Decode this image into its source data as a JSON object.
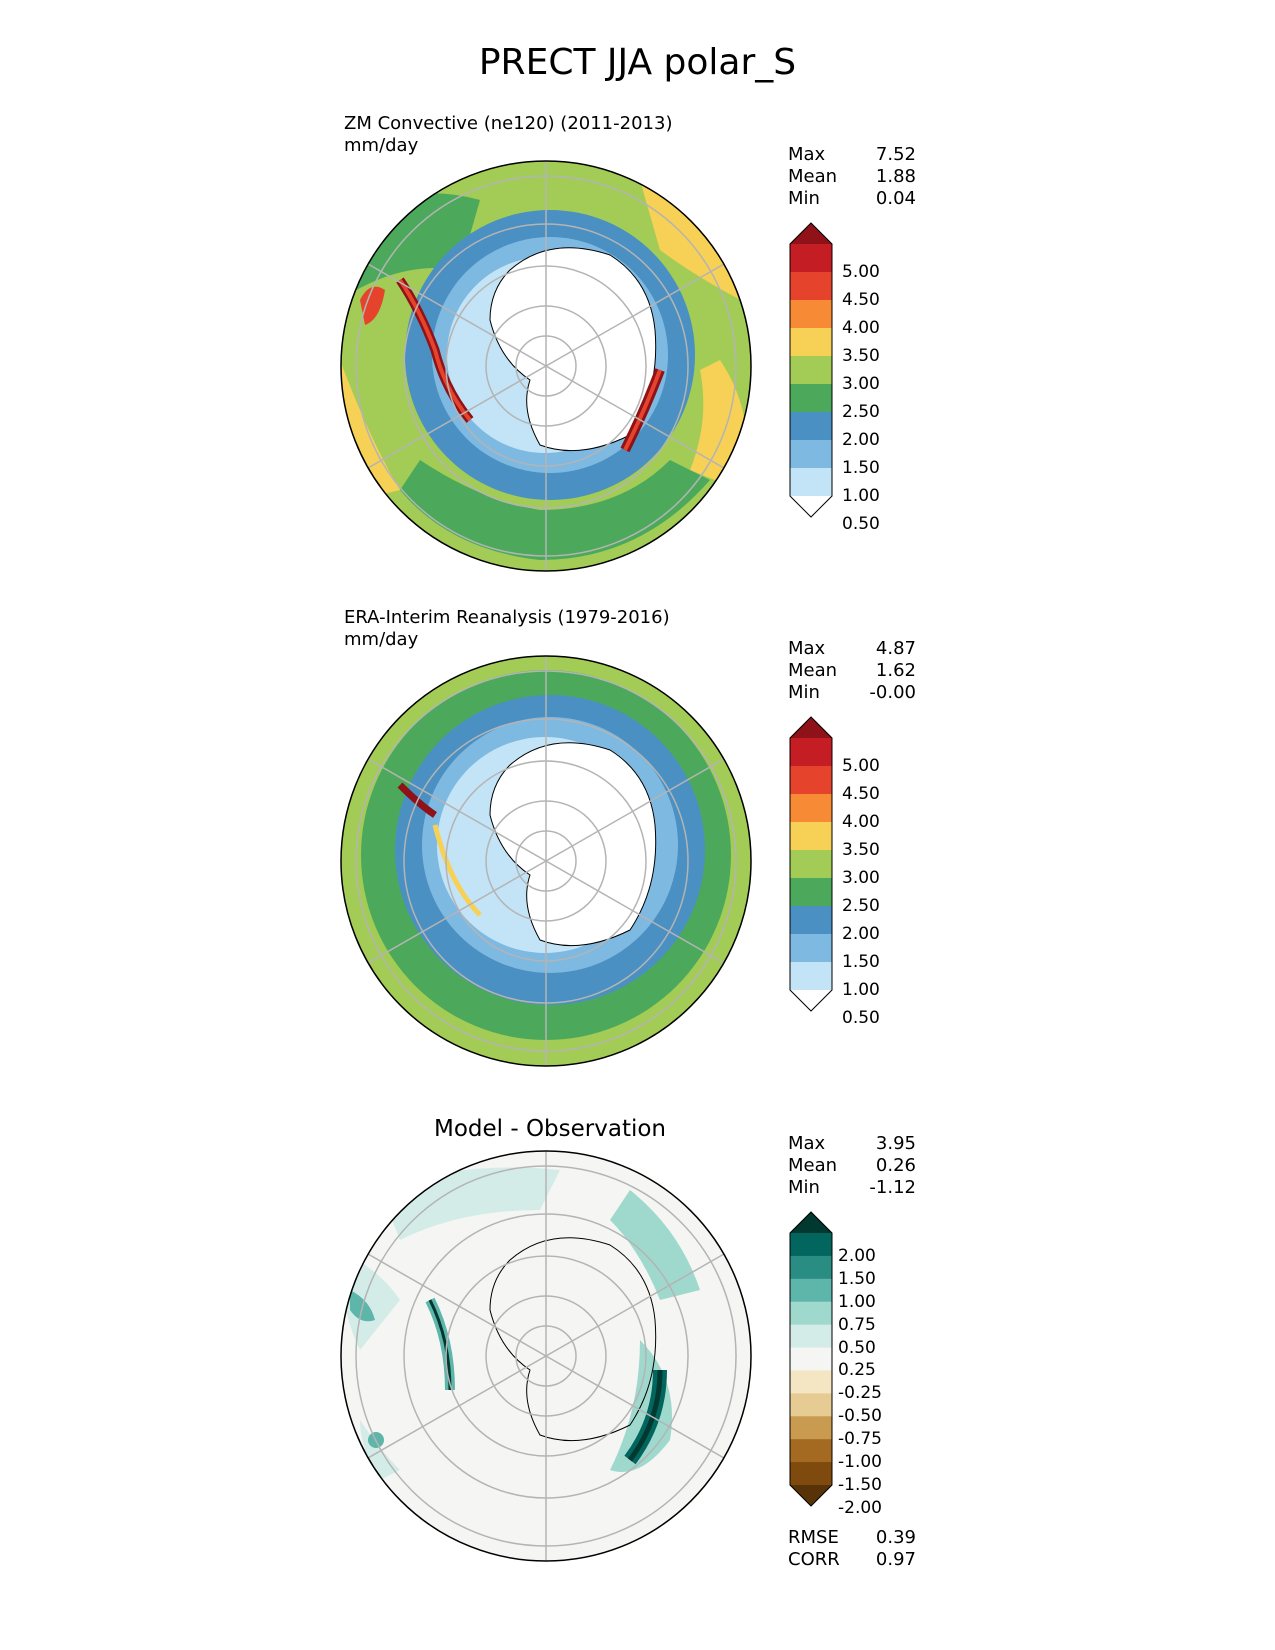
{
  "title": "PRECT JJA polar_S",
  "panels": [
    {
      "id": "test",
      "title_line1": "ZM Convective (ne120) (2011-2013)",
      "title_line2": "mm/day",
      "stats": [
        {
          "label": "Max",
          "value": "7.52"
        },
        {
          "label": "Mean",
          "value": "1.88"
        },
        {
          "label": "Min",
          "value": "0.04"
        }
      ]
    },
    {
      "id": "reference",
      "title_line1": "ERA-Interim Reanalysis (1979-2016)",
      "title_line2": "mm/day",
      "stats": [
        {
          "label": "Max",
          "value": "4.87"
        },
        {
          "label": "Mean",
          "value": "1.62"
        },
        {
          "label": "Min",
          "value": "-0.00"
        }
      ]
    },
    {
      "id": "difference",
      "title_line1": "Model - Observation",
      "stats": [
        {
          "label": "Max",
          "value": "3.95"
        },
        {
          "label": "Mean",
          "value": "0.26"
        },
        {
          "label": "Min",
          "value": "-1.12"
        }
      ],
      "extra_stats": [
        {
          "label": "RMSE",
          "value": "0.39"
        },
        {
          "label": "CORR",
          "value": "0.97"
        }
      ]
    }
  ],
  "colorbars": {
    "precip": {
      "labels": [
        "5.00",
        "4.50",
        "4.00",
        "3.50",
        "3.00",
        "2.50",
        "2.00",
        "1.50",
        "1.00",
        "0.50"
      ],
      "colors": [
        "#8e1218",
        "#c41d24",
        "#e5432b",
        "#f68a35",
        "#f7d056",
        "#a2cc55",
        "#4ca95c",
        "#4a90c2",
        "#7eb9e2",
        "#c3e4f6",
        "#ffffff"
      ]
    },
    "diff": {
      "labels": [
        "2.00",
        "1.50",
        "1.00",
        "0.75",
        "0.50",
        "0.25",
        "-0.25",
        "-0.50",
        "-0.75",
        "-1.00",
        "-1.50",
        "-2.00"
      ],
      "colors": [
        "#01382f",
        "#03665e",
        "#2a8d83",
        "#5eb5aa",
        "#9fd9cd",
        "#d4ece8",
        "#f5f5f3",
        "#f5e6c3",
        "#e6cc93",
        "#c99b50",
        "#a56a22",
        "#7f4a0d",
        "#583307"
      ]
    }
  },
  "chart_data": [
    {
      "type": "heatmap",
      "projection": "south-polar-stereographic",
      "title": "ZM Convective (ne120) (2011-2013)",
      "units": "mm/day",
      "levels": [
        0.5,
        1.0,
        1.5,
        2.0,
        2.5,
        3.0,
        3.5,
        4.0,
        4.5,
        5.0
      ],
      "stats": {
        "max": 7.52,
        "mean": 1.88,
        "min": 0.04
      }
    },
    {
      "type": "heatmap",
      "projection": "south-polar-stereographic",
      "title": "ERA-Interim Reanalysis (1979-2016)",
      "units": "mm/day",
      "levels": [
        0.5,
        1.0,
        1.5,
        2.0,
        2.5,
        3.0,
        3.5,
        4.0,
        4.5,
        5.0
      ],
      "stats": {
        "max": 4.87,
        "mean": 1.62,
        "min": -0.0
      }
    },
    {
      "type": "heatmap",
      "projection": "south-polar-stereographic",
      "title": "Model - Observation",
      "levels": [
        -2.0,
        -1.5,
        -1.0,
        -0.75,
        -0.5,
        -0.25,
        0.25,
        0.5,
        0.75,
        1.0,
        1.5,
        2.0
      ],
      "stats": {
        "max": 3.95,
        "mean": 0.26,
        "min": -1.12,
        "rmse": 0.39,
        "corr": 0.97
      }
    }
  ]
}
